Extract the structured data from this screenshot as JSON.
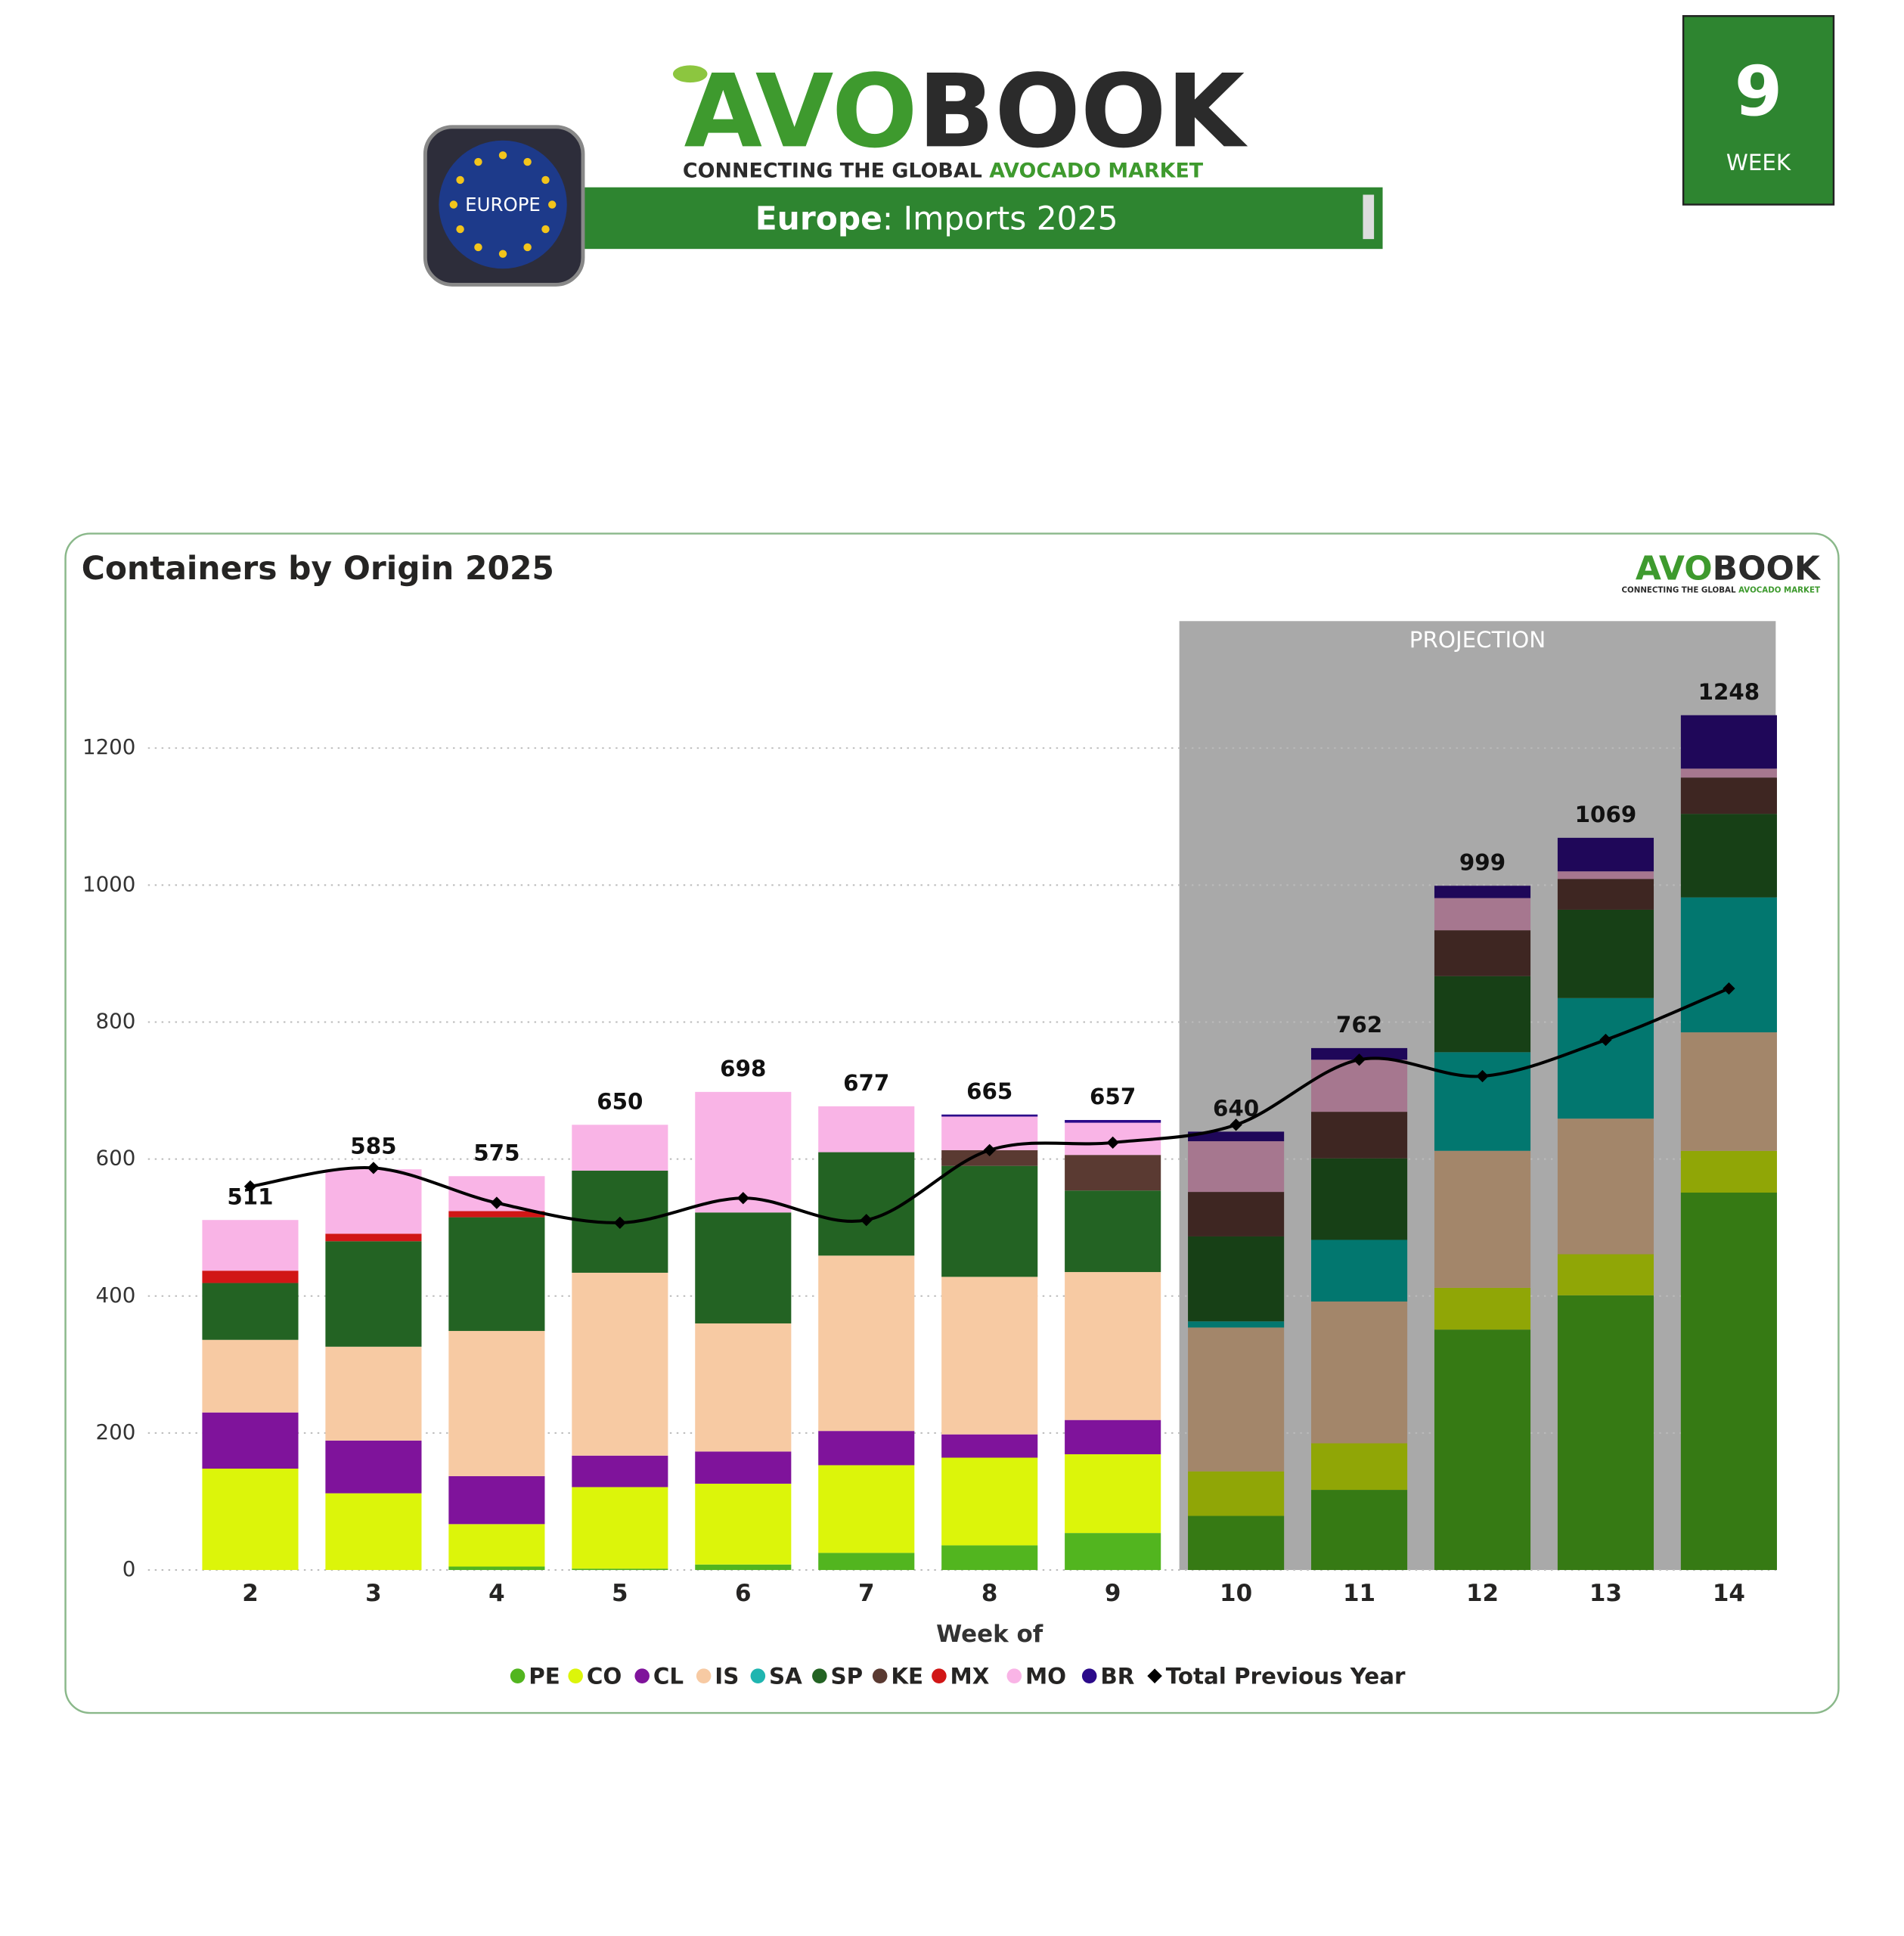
{
  "header": {
    "logo_a": "AVO",
    "logo_b": "BOOK",
    "tagline_a": "CONNECTING THE GLOBAL ",
    "tagline_b": "AVOCADO MARKET",
    "region": "Europe",
    "subtitle": ": Imports 2025",
    "badge": "EUROPE",
    "week": 9,
    "week_label": "WEEK"
  },
  "chart_data": {
    "type": "stacked-bar",
    "title": "Containers by Origin 2025",
    "x_label": "Week of",
    "categories": [
      "2",
      "3",
      "4",
      "5",
      "6",
      "7",
      "8",
      "9",
      "10",
      "11",
      "12",
      "13",
      "14"
    ],
    "projection_label": "PROJECTION",
    "projection_start": "10",
    "projection_color": "#a9a9a9",
    "series": [
      {
        "name": "PE",
        "color": "#52b51f",
        "projection_color": "#367a14",
        "values": [
          0,
          0,
          5,
          2,
          8,
          25,
          36,
          54,
          79,
          117,
          351,
          401,
          551
        ]
      },
      {
        "name": "CO",
        "color": "#dcf50a",
        "projection_color": "#90a606",
        "values": [
          148,
          112,
          62,
          119,
          118,
          128,
          128,
          115,
          65,
          68,
          61,
          60,
          61
        ]
      },
      {
        "name": "CL",
        "color": "#7f139b",
        "projection_color": "#5a0e6e",
        "values": [
          82,
          77,
          70,
          46,
          47,
          50,
          34,
          50,
          0,
          0,
          0,
          0,
          0
        ]
      },
      {
        "name": "IS",
        "color": "#f7caa3",
        "projection_color": "#a3866a",
        "values": [
          106,
          137,
          212,
          267,
          187,
          256,
          230,
          216,
          210,
          207,
          200,
          198,
          173
        ]
      },
      {
        "name": "SA",
        "color": "#1fb5b0",
        "projection_color": "#02776f",
        "values": [
          0,
          0,
          0,
          0,
          0,
          0,
          0,
          0,
          9,
          90,
          144,
          176,
          197
        ]
      },
      {
        "name": "SP",
        "color": "#236323",
        "projection_color": "#174016",
        "values": [
          83,
          154,
          166,
          149,
          162,
          151,
          162,
          119,
          124,
          119,
          111,
          129,
          122
        ]
      },
      {
        "name": "KE",
        "color": "#5a3a32",
        "projection_color": "#3e2622",
        "values": [
          0,
          0,
          0,
          0,
          0,
          0,
          23,
          52,
          65,
          68,
          67,
          45,
          53
        ]
      },
      {
        "name": "MX",
        "color": "#d11616",
        "projection_color": "#8f1010",
        "values": [
          18,
          11,
          9,
          0,
          0,
          0,
          0,
          0,
          0,
          0,
          0,
          0,
          0
        ]
      },
      {
        "name": "MO",
        "color": "#f9b4e6",
        "projection_color": "#a6778f",
        "values": [
          74,
          94,
          51,
          67,
          176,
          67,
          49,
          47,
          74,
          76,
          47,
          11,
          13
        ]
      },
      {
        "name": "BR",
        "color": "#2b0a8a",
        "projection_color": "#1f0759",
        "values": [
          0,
          0,
          0,
          0,
          0,
          0,
          3,
          4,
          14,
          17,
          18,
          49,
          78
        ]
      }
    ],
    "totals": [
      511,
      585,
      575,
      650,
      698,
      677,
      665,
      657,
      640,
      762,
      999,
      1069,
      1248
    ],
    "line": {
      "name": "Total Previous Year",
      "color": "#000000",
      "values": [
        560,
        587,
        536,
        507,
        543,
        511,
        613,
        624,
        650,
        745,
        721,
        774,
        849
      ]
    },
    "ylim": [
      0,
      1380
    ],
    "yticks": [
      0,
      200,
      400,
      600,
      800,
      1000,
      1200
    ],
    "grid": true
  }
}
